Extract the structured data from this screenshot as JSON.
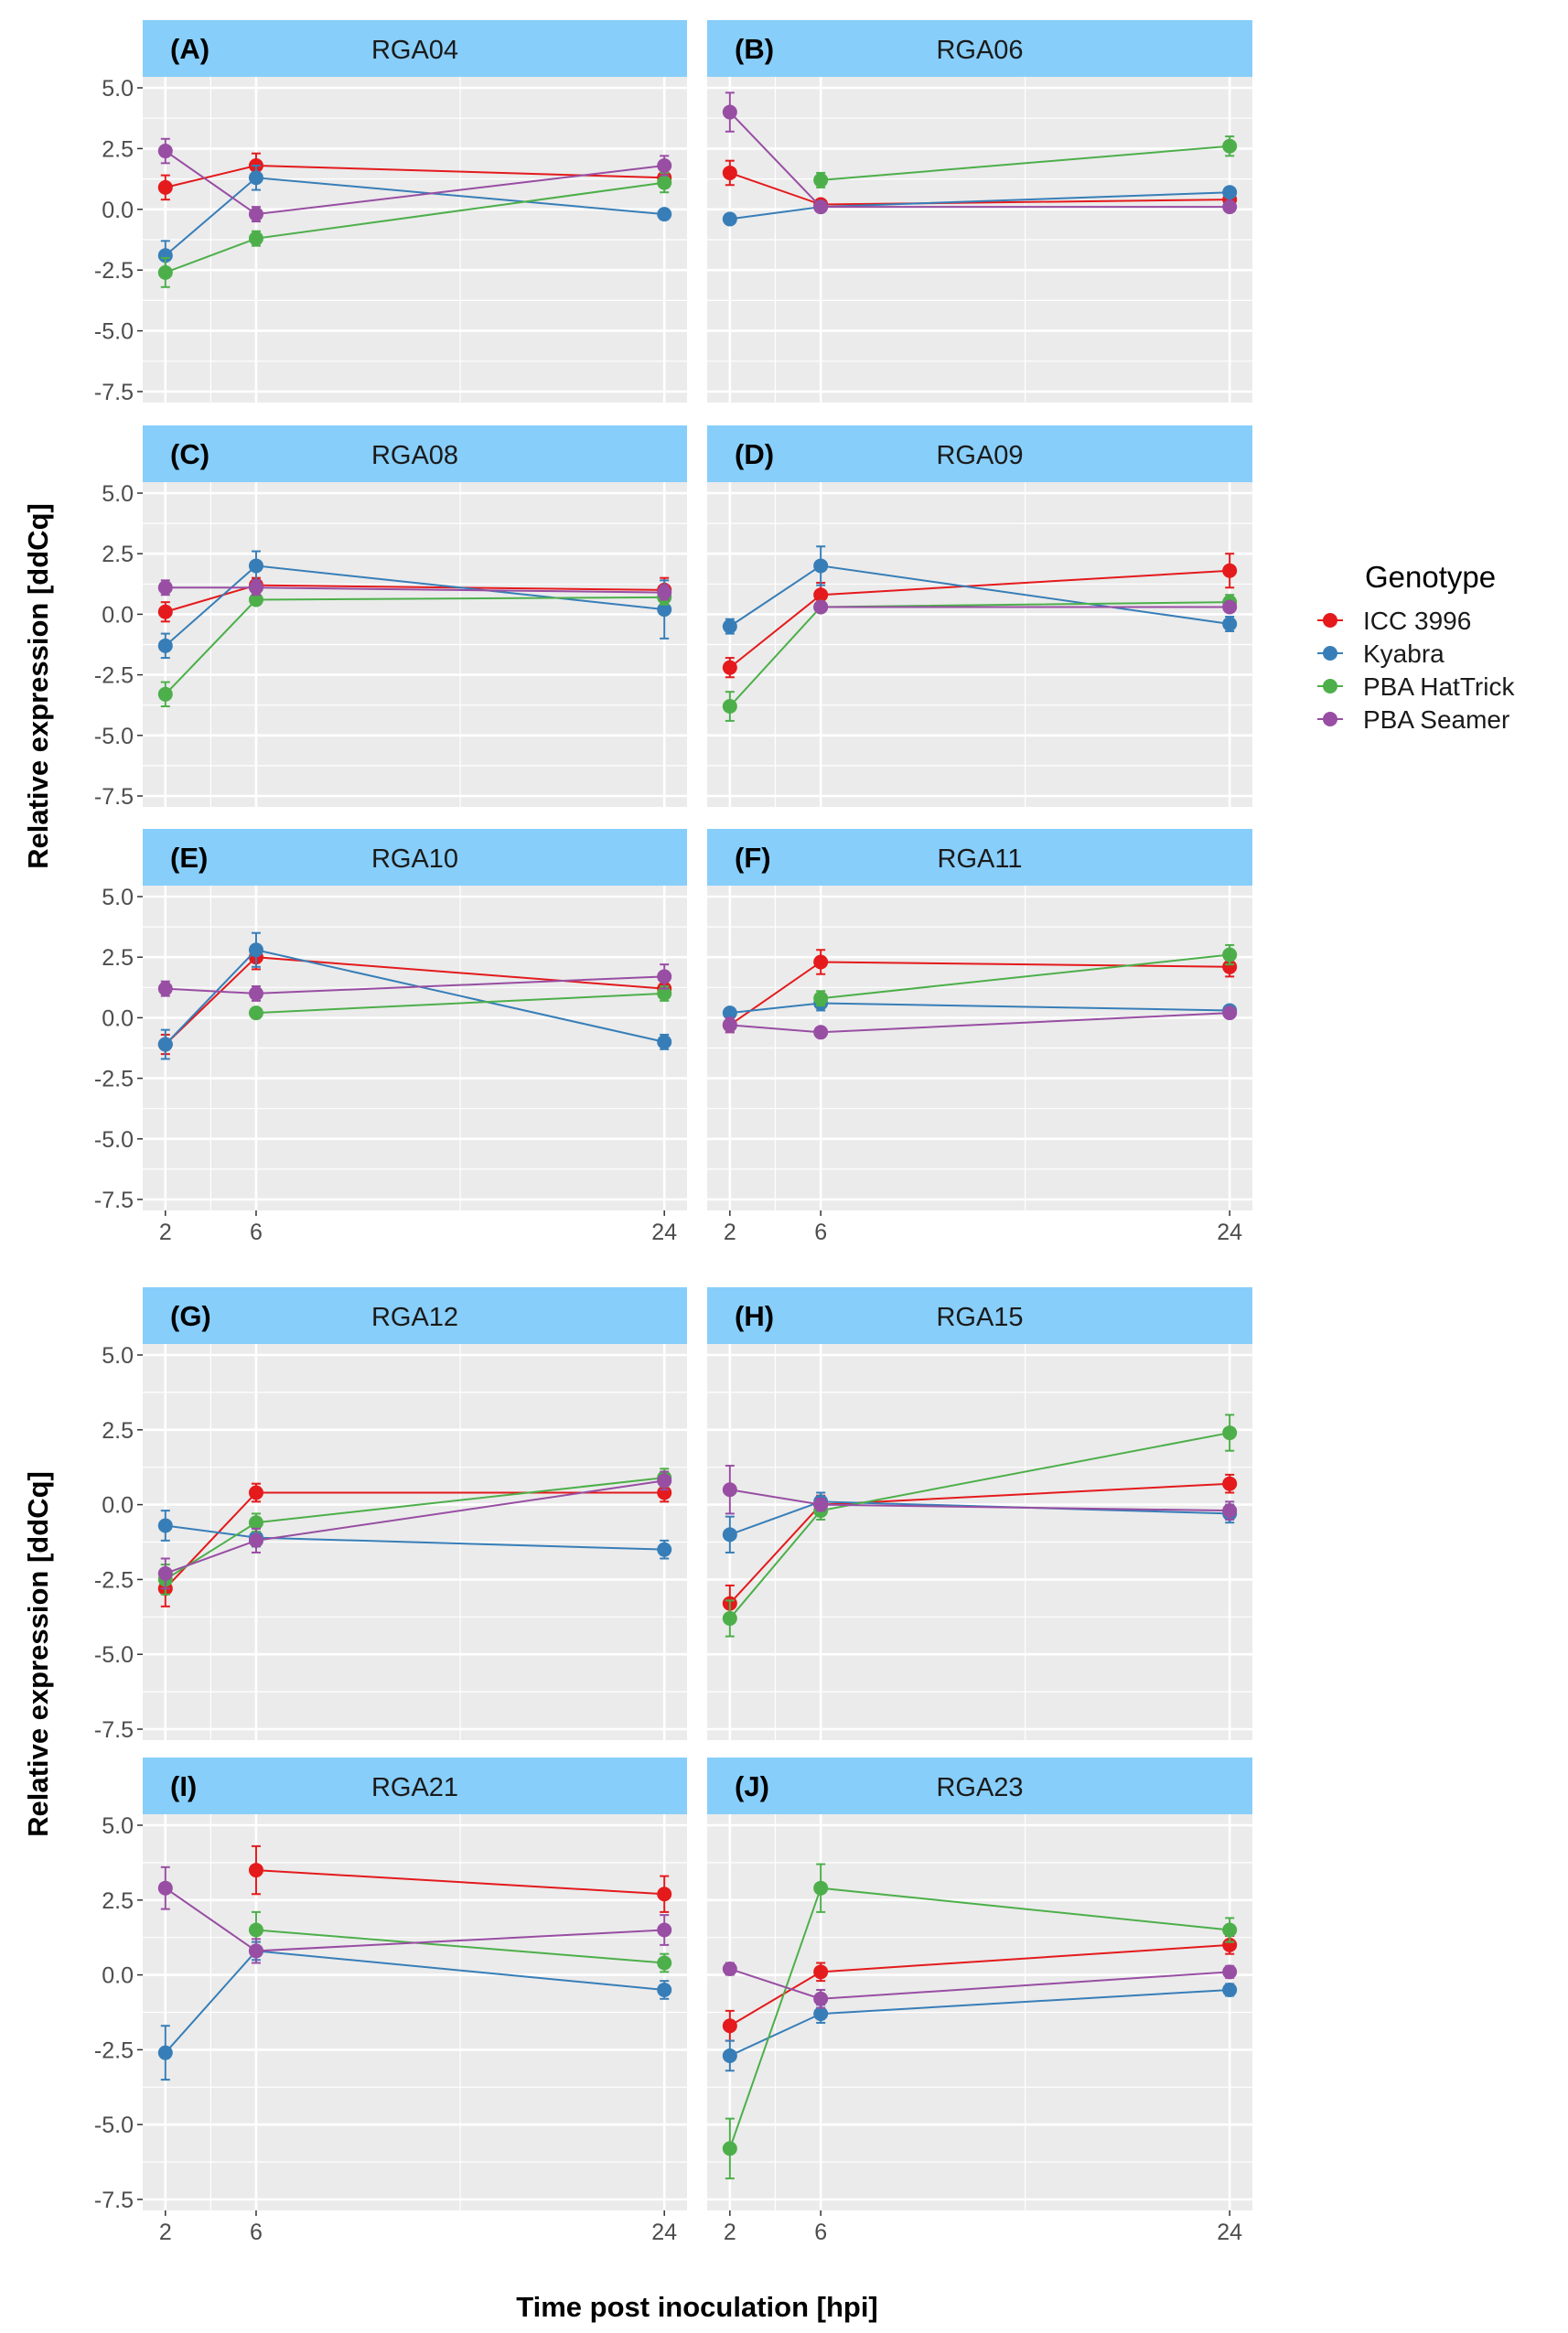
{
  "chart_data": {
    "type": "line",
    "figure_ylabel": "Relative expression [ddCq]",
    "xlabel": "Time post inoculation [hpi]",
    "x": [
      2,
      6,
      24
    ],
    "x_ticks": [
      "2",
      "6",
      "24"
    ],
    "xlim": [
      1,
      25
    ],
    "ylim": [
      -7.5,
      5.0
    ],
    "y_ticks": [
      "5.0",
      "2.5",
      "0.0",
      "-2.5",
      "-5.0",
      "-7.5"
    ],
    "legend": {
      "title": "Genotype",
      "entries": [
        "ICC 3996",
        "Kyabra",
        "PBA HatTrick",
        "PBA Seamer"
      ],
      "colors": [
        "#e41a1c",
        "#377eb8",
        "#4daf4a",
        "#984ea3"
      ]
    },
    "panels": [
      {
        "letter": "(A)",
        "title": "RGA04",
        "series": [
          {
            "name": "ICC 3996",
            "values": [
              0.9,
              1.8,
              1.3
            ],
            "errors": [
              0.5,
              0.5,
              0.4
            ]
          },
          {
            "name": "Kyabra",
            "values": [
              -1.9,
              1.3,
              -0.2
            ],
            "errors": [
              0.6,
              0.5,
              0.2
            ]
          },
          {
            "name": "PBA HatTrick",
            "values": [
              -2.6,
              -1.2,
              1.1
            ],
            "errors": [
              0.6,
              0.3,
              0.4
            ]
          },
          {
            "name": "PBA Seamer",
            "values": [
              2.4,
              -0.2,
              1.8
            ],
            "errors": [
              0.5,
              0.3,
              0.4
            ]
          }
        ]
      },
      {
        "letter": "(B)",
        "title": "RGA06",
        "series": [
          {
            "name": "ICC 3996",
            "values": [
              1.5,
              0.2,
              0.4
            ],
            "errors": [
              0.5,
              0.2,
              0.2
            ]
          },
          {
            "name": "Kyabra",
            "values": [
              -0.4,
              0.1,
              0.7
            ],
            "errors": [
              0.2,
              0.1,
              0.2
            ]
          },
          {
            "name": "PBA HatTrick",
            "values": [
              null,
              1.2,
              2.6
            ],
            "errors": [
              null,
              0.3,
              0.4
            ]
          },
          {
            "name": "PBA Seamer",
            "values": [
              4.0,
              0.1,
              0.1
            ],
            "errors": [
              0.8,
              0.1,
              0.2
            ]
          }
        ]
      },
      {
        "letter": "(C)",
        "title": "RGA08",
        "series": [
          {
            "name": "ICC 3996",
            "values": [
              0.1,
              1.2,
              1.0
            ],
            "errors": [
              0.4,
              0.3,
              0.5
            ]
          },
          {
            "name": "Kyabra",
            "values": [
              -1.3,
              2.0,
              0.2
            ],
            "errors": [
              0.5,
              0.6,
              1.2
            ]
          },
          {
            "name": "PBA HatTrick",
            "values": [
              -3.3,
              0.6,
              0.7
            ],
            "errors": [
              0.5,
              0.2,
              0.3
            ]
          },
          {
            "name": "PBA Seamer",
            "values": [
              1.1,
              1.1,
              0.9
            ],
            "errors": [
              0.3,
              0.3,
              0.3
            ]
          }
        ]
      },
      {
        "letter": "(D)",
        "title": "RGA09",
        "series": [
          {
            "name": "ICC 3996",
            "values": [
              -2.2,
              0.8,
              1.8
            ],
            "errors": [
              0.4,
              0.5,
              0.7
            ]
          },
          {
            "name": "Kyabra",
            "values": [
              -0.5,
              2.0,
              -0.4
            ],
            "errors": [
              0.3,
              0.8,
              0.3
            ]
          },
          {
            "name": "PBA HatTrick",
            "values": [
              -3.8,
              0.3,
              0.5
            ],
            "errors": [
              0.6,
              0.2,
              0.3
            ]
          },
          {
            "name": "PBA Seamer",
            "values": [
              null,
              0.3,
              0.3
            ],
            "errors": [
              null,
              0.2,
              0.2
            ]
          }
        ]
      },
      {
        "letter": "(E)",
        "title": "RGA10",
        "series": [
          {
            "name": "ICC 3996",
            "values": [
              -1.1,
              2.5,
              1.2
            ],
            "errors": [
              0.4,
              0.5,
              0.3
            ]
          },
          {
            "name": "Kyabra",
            "values": [
              -1.1,
              2.8,
              -1.0
            ],
            "errors": [
              0.6,
              0.7,
              0.3
            ]
          },
          {
            "name": "PBA HatTrick",
            "values": [
              null,
              0.2,
              1.0
            ],
            "errors": [
              null,
              0.2,
              0.3
            ]
          },
          {
            "name": "PBA Seamer",
            "values": [
              1.2,
              1.0,
              1.7
            ],
            "errors": [
              0.3,
              0.3,
              0.5
            ]
          }
        ]
      },
      {
        "letter": "(F)",
        "title": "RGA11",
        "series": [
          {
            "name": "ICC 3996",
            "values": [
              -0.3,
              2.3,
              2.1
            ],
            "errors": [
              0.3,
              0.5,
              0.4
            ]
          },
          {
            "name": "Kyabra",
            "values": [
              0.2,
              0.6,
              0.3
            ],
            "errors": [
              0.2,
              0.3,
              0.2
            ]
          },
          {
            "name": "PBA HatTrick",
            "values": [
              null,
              0.8,
              2.6
            ],
            "errors": [
              null,
              0.3,
              0.4
            ]
          },
          {
            "name": "PBA Seamer",
            "values": [
              -0.3,
              -0.6,
              0.2
            ],
            "errors": [
              0.3,
              0.2,
              0.2
            ]
          }
        ]
      },
      {
        "letter": "(G)",
        "title": "RGA12",
        "series": [
          {
            "name": "ICC 3996",
            "values": [
              -2.8,
              0.4,
              0.4
            ],
            "errors": [
              0.6,
              0.3,
              0.3
            ]
          },
          {
            "name": "Kyabra",
            "values": [
              -0.7,
              -1.1,
              -1.5
            ],
            "errors": [
              0.5,
              0.3,
              0.3
            ]
          },
          {
            "name": "PBA HatTrick",
            "values": [
              -2.5,
              -0.6,
              0.9
            ],
            "errors": [
              0.5,
              0.3,
              0.3
            ]
          },
          {
            "name": "PBA Seamer",
            "values": [
              -2.3,
              -1.2,
              0.8
            ],
            "errors": [
              0.5,
              0.4,
              0.3
            ]
          }
        ]
      },
      {
        "letter": "(H)",
        "title": "RGA15",
        "series": [
          {
            "name": "ICC 3996",
            "values": [
              -3.3,
              0.0,
              0.7
            ],
            "errors": [
              0.6,
              0.3,
              0.3
            ]
          },
          {
            "name": "Kyabra",
            "values": [
              -1.0,
              0.1,
              -0.3
            ],
            "errors": [
              0.6,
              0.3,
              0.3
            ]
          },
          {
            "name": "PBA HatTrick",
            "values": [
              -3.8,
              -0.2,
              2.4
            ],
            "errors": [
              0.6,
              0.3,
              0.6
            ]
          },
          {
            "name": "PBA Seamer",
            "values": [
              0.5,
              0.0,
              -0.2
            ],
            "errors": [
              0.8,
              0.2,
              0.3
            ]
          }
        ]
      },
      {
        "letter": "(I)",
        "title": "RGA21",
        "series": [
          {
            "name": "ICC 3996",
            "values": [
              null,
              3.5,
              2.7
            ],
            "errors": [
              null,
              0.8,
              0.6
            ]
          },
          {
            "name": "Kyabra",
            "values": [
              -2.6,
              0.8,
              -0.5
            ],
            "errors": [
              0.9,
              0.3,
              0.3
            ]
          },
          {
            "name": "PBA HatTrick",
            "values": [
              null,
              1.5,
              0.4
            ],
            "errors": [
              null,
              0.6,
              0.3
            ]
          },
          {
            "name": "PBA Seamer",
            "values": [
              2.9,
              0.8,
              1.5
            ],
            "errors": [
              0.7,
              0.4,
              0.5
            ]
          }
        ]
      },
      {
        "letter": "(J)",
        "title": "RGA23",
        "series": [
          {
            "name": "ICC 3996",
            "values": [
              -1.7,
              0.1,
              1.0
            ],
            "errors": [
              0.5,
              0.3,
              0.3
            ]
          },
          {
            "name": "Kyabra",
            "values": [
              -2.7,
              -1.3,
              -0.5
            ],
            "errors": [
              0.5,
              0.3,
              0.2
            ]
          },
          {
            "name": "PBA HatTrick",
            "values": [
              -5.8,
              2.9,
              1.5
            ],
            "errors": [
              1.0,
              0.8,
              0.4
            ]
          },
          {
            "name": "PBA Seamer",
            "values": [
              0.2,
              -0.8,
              0.1
            ],
            "errors": [
              0.2,
              0.3,
              0.2
            ]
          }
        ]
      }
    ]
  }
}
